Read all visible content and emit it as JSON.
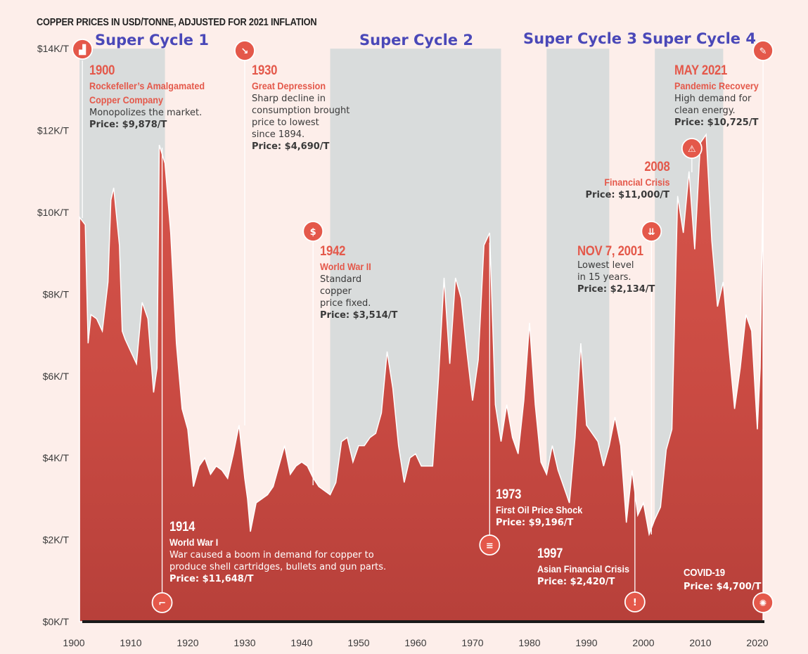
{
  "chart_data": {
    "type": "area",
    "title": "COPPER PRICES IN USD/TONNE, ADJUSTED FOR 2021 INFLATION",
    "xlabel": "",
    "ylabel": "",
    "xlim": [
      1900,
      2021
    ],
    "ylim": [
      0,
      14000
    ],
    "x_ticks": [
      "1900",
      "1910",
      "1920",
      "1930",
      "1940",
      "1950",
      "1960",
      "1970",
      "1980",
      "1990",
      "2000",
      "2010",
      "2020"
    ],
    "y_ticks": [
      "$0K/T",
      "$2K/T",
      "$4K/T",
      "$6K/T",
      "$8K/T",
      "$10K/T",
      "$12K/T",
      "$14K/T"
    ],
    "grid": false,
    "series": [
      {
        "name": "Copper price (USD/tonne, 2021 dollars)",
        "x": [
          1901,
          1902,
          1902.5,
          1903,
          1904,
          1905,
          1906,
          1906.5,
          1907,
          1908,
          1908.5,
          1909,
          1910,
          1911,
          1912,
          1913,
          1914,
          1914.6,
          1915,
          1916,
          1917,
          1918,
          1919,
          1920,
          1921,
          1922,
          1923,
          1924,
          1925,
          1926,
          1927,
          1928,
          1929,
          1930,
          1930.5,
          1931,
          1932,
          1933,
          1934,
          1935,
          1936,
          1937,
          1938,
          1939,
          1940,
          1941,
          1942,
          1943,
          1944,
          1945,
          1946,
          1947,
          1948,
          1949,
          1950,
          1951,
          1952,
          1953,
          1954,
          1955,
          1956,
          1957,
          1958,
          1959,
          1960,
          1961,
          1962,
          1963,
          1964,
          1965,
          1966,
          1967,
          1968,
          1969,
          1970,
          1971,
          1972,
          1973,
          1974,
          1975,
          1976,
          1977,
          1978,
          1979,
          1980,
          1981,
          1982,
          1983,
          1984,
          1985,
          1986,
          1987,
          1988,
          1989,
          1990,
          1991,
          1992,
          1993,
          1994,
          1995,
          1996,
          1997,
          1998,
          1999,
          2000,
          2001,
          2002,
          2003,
          2004,
          2005,
          2006,
          2007,
          2008,
          2009,
          2010,
          2011,
          2012,
          2013,
          2014,
          2015,
          2016,
          2017,
          2018,
          2019,
          2020,
          2020.5,
          2021
        ],
        "values": [
          9878,
          9700,
          6800,
          7500,
          7400,
          7100,
          8300,
          10300,
          10600,
          9200,
          7100,
          6900,
          6600,
          6300,
          7800,
          7400,
          5600,
          6200,
          11648,
          11200,
          9500,
          6800,
          5200,
          4700,
          3300,
          3800,
          4000,
          3600,
          3800,
          3700,
          3500,
          4100,
          4800,
          3500,
          3000,
          2200,
          2900,
          3000,
          3100,
          3300,
          3800,
          4300,
          3600,
          3800,
          3900,
          3800,
          3514,
          3300,
          3200,
          3100,
          3400,
          4400,
          4500,
          3900,
          4300,
          4300,
          4500,
          4600,
          5100,
          6600,
          5700,
          4300,
          3400,
          4000,
          4100,
          3800,
          3800,
          3800,
          5900,
          8400,
          6300,
          8400,
          7900,
          6600,
          5400,
          6400,
          9196,
          9500,
          5300,
          4400,
          5300,
          4500,
          4100,
          5400,
          7300,
          5300,
          3900,
          3600,
          4300,
          3700,
          3300,
          2900,
          4500,
          6800,
          4800,
          4600,
          4400,
          3800,
          4300,
          5000,
          4300,
          2420,
          3700,
          2600,
          2900,
          2134,
          2500,
          2800,
          4200,
          4700,
          10400,
          9500,
          11000,
          9100,
          11700,
          11900,
          9300,
          7700,
          8300,
          6700,
          5200,
          6200,
          7500,
          7100,
          4700,
          6200,
          10725
        ]
      }
    ],
    "annotations": [
      {
        "year": "1900",
        "event": "Rockefeller’s Amalgamated",
        "event2": "Copper Company",
        "desc": [
          "Monopolizes the market."
        ],
        "price": "Price: $9,878/T"
      },
      {
        "year": "1914",
        "event": "World War I",
        "event2": "",
        "desc": [
          "War caused a boom in demand for copper to",
          "produce shell cartridges, bullets and gun parts."
        ],
        "price": "Price: $11,648/T"
      },
      {
        "year": "1930",
        "event": "Great Depression",
        "event2": "",
        "desc": [
          "Sharp decline in",
          "consumption brought",
          "price to lowest",
          "since 1894."
        ],
        "price": "Price: $4,690/T"
      },
      {
        "year": "1942",
        "event": "World War II",
        "event2": "",
        "desc": [
          "Standard",
          "copper",
          "price fixed."
        ],
        "price": "Price: $3,514/T"
      },
      {
        "year": "1973",
        "event": "First Oil Price Shock",
        "event2": "",
        "desc": [],
        "price": "Price: $9,196/T"
      },
      {
        "year": "1997",
        "event": "Asian Financial Crisis",
        "event2": "",
        "desc": [],
        "price": "Price: $2,420/T"
      },
      {
        "year": "NOV 7, 2001",
        "event": "",
        "event2": "",
        "desc": [
          "Lowest level",
          "in 15 years."
        ],
        "price": "Price: $2,134/T"
      },
      {
        "year": "2008",
        "event": "Financial Crisis",
        "event2": "",
        "desc": [],
        "price": "Price: $11,000/T"
      },
      {
        "year": "MAY 2021",
        "event": "Pandemic Recovery",
        "event2": "",
        "desc": [
          "High demand for",
          "clean energy."
        ],
        "price": "Price: $10,725/T"
      },
      {
        "year": "COVID-19",
        "event": "",
        "event2": "",
        "desc": [],
        "price": "Price: $4,700/T"
      }
    ],
    "super_cycles": [
      {
        "label": "Super Cycle 1",
        "start": 1901,
        "end": 1916
      },
      {
        "label": "Super Cycle 2",
        "start": 1945,
        "end": 1975
      },
      {
        "label": "Super Cycle 3",
        "start": 1983,
        "end": 1994
      },
      {
        "label": "Super Cycle 4",
        "start": 2002,
        "end": 2014
      }
    ]
  },
  "colors": {
    "accent": "#e4584a",
    "area": "#c94a42",
    "band": "#d9dcdc",
    "background": "#fdeeea",
    "cycle_label": "#4a48b8"
  }
}
